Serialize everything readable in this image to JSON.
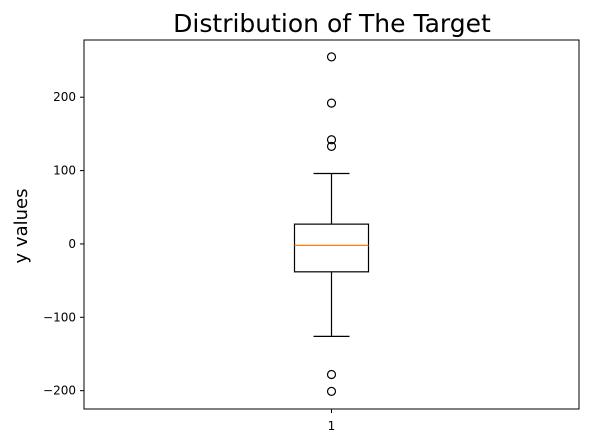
{
  "chart_data": {
    "type": "box",
    "title": "Distribution of The Target",
    "xlabel": "",
    "ylabel": "y values",
    "categories": [
      "1"
    ],
    "ylim": [
      -225,
      278
    ],
    "yticks": [
      -200,
      -100,
      0,
      100,
      200
    ],
    "ytick_labels": [
      "−200",
      "−100",
      "0",
      "100",
      "200"
    ],
    "grid": false,
    "boxes": [
      {
        "label": "1",
        "whisker_low": -126,
        "q1": -38,
        "median": -2,
        "q3": 27,
        "whisker_high": 96,
        "fliers": [
          255,
          192,
          142,
          133,
          -178,
          -201
        ]
      }
    ],
    "colors": {
      "box": "#000000",
      "median": "#ff7f0e",
      "flier": "#000000"
    }
  }
}
